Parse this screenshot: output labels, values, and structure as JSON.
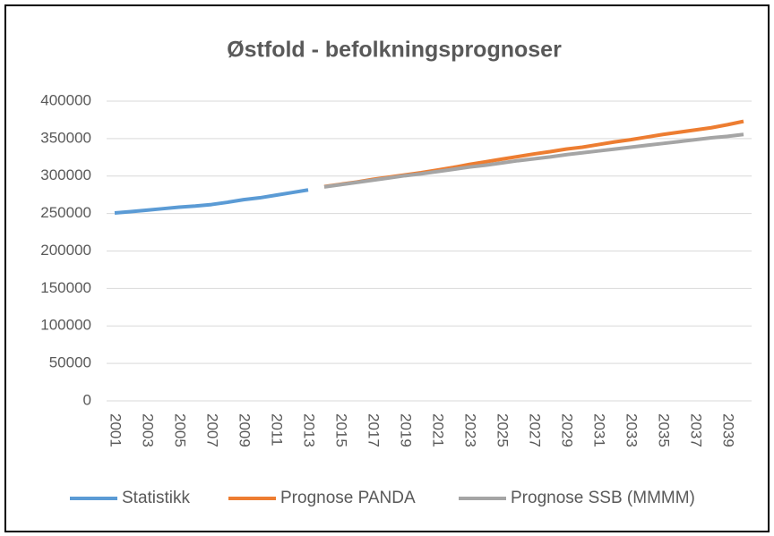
{
  "chart_data": {
    "type": "line",
    "title": "Østfold - befolkningsprognoser",
    "categories": [
      "2001",
      null,
      "2003",
      null,
      "2005",
      null,
      "2007",
      null,
      "2009",
      null,
      "2011",
      null,
      "2013",
      null,
      "2015",
      null,
      "2017",
      null,
      "2019",
      null,
      "2021",
      null,
      "2023",
      null,
      "2025",
      null,
      "2027",
      null,
      "2029",
      null,
      "2031",
      null,
      "2033",
      null,
      "2035",
      null,
      "2037",
      null,
      "2039",
      null
    ],
    "series": [
      {
        "name": "Statistikk",
        "color": "#5b9bd5",
        "values": [
          250800,
          252500,
          254500,
          256500,
          258500,
          260000,
          262000,
          265000,
          268500,
          271000,
          274500,
          278000,
          281500,
          null,
          null,
          null,
          null,
          null,
          null,
          null,
          null,
          null,
          null,
          null,
          null,
          null,
          null,
          null,
          null,
          null,
          null,
          null,
          null,
          null,
          null,
          null,
          null,
          null,
          null,
          null
        ]
      },
      {
        "name": "Prognose PANDA",
        "color": "#ed7d31",
        "values": [
          null,
          null,
          null,
          null,
          null,
          null,
          null,
          null,
          null,
          null,
          null,
          null,
          null,
          286000,
          289000,
          292000,
          295500,
          298500,
          301500,
          304500,
          308000,
          311500,
          315500,
          319000,
          322500,
          326000,
          329500,
          332500,
          336000,
          338500,
          342000,
          345500,
          348500,
          352000,
          355500,
          358500,
          361500,
          364500,
          368500,
          373000
        ]
      },
      {
        "name": "Prognose SSB (MMMM)",
        "color": "#a5a5a5",
        "values": [
          null,
          null,
          null,
          null,
          null,
          null,
          null,
          null,
          null,
          null,
          null,
          null,
          null,
          285500,
          288500,
          291500,
          294500,
          297500,
          300500,
          303000,
          306000,
          309000,
          312000,
          314500,
          317500,
          320500,
          323000,
          325500,
          328500,
          331000,
          333500,
          336000,
          338500,
          341000,
          343500,
          346000,
          348500,
          351000,
          353000,
          355500
        ]
      }
    ],
    "ylim": [
      0,
      400000
    ],
    "yticks": [
      0,
      50000,
      100000,
      150000,
      200000,
      250000,
      300000,
      350000,
      400000
    ],
    "grid": true,
    "legend": "bottom"
  }
}
